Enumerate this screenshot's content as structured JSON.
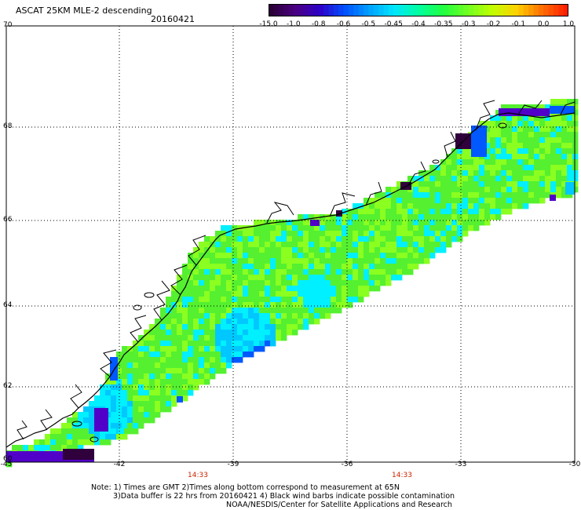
{
  "title": "ASCAT 25KM MLE-2 descending",
  "date": "20160421",
  "colorbar": {
    "labels": [
      "-15.0",
      "-1.0",
      "-0.8",
      "-0.6",
      "-0.5",
      "-0.45",
      "-0.4",
      "-0.35",
      "-0.3",
      "-0.2",
      "-0.1",
      "0.0",
      "1.0"
    ],
    "colors": [
      "#2a0036",
      "#4b0082",
      "#2c00c8",
      "#0050ff",
      "#00a0ff",
      "#00e6ff",
      "#00ffa0",
      "#20ff40",
      "#70ff20",
      "#c0ff00",
      "#ffd000",
      "#ff7000",
      "#ff2000"
    ]
  },
  "map": {
    "lat_labels": [
      "70",
      "68",
      "66",
      "64",
      "62",
      "60"
    ],
    "lon_labels": [
      "-45",
      "-42",
      "-39",
      "-36",
      "-33",
      "-30"
    ],
    "time_labels": [
      {
        "text": "14:33"
      },
      {
        "text": "14:33"
      }
    ],
    "swath_colors": {
      "green": "#55f030",
      "lime": "#8aff20",
      "cyan": "#00f0ff",
      "sky": "#00c8ff",
      "blue": "#0058ff",
      "purple": "#5000c8",
      "dark": "#30003c"
    }
  },
  "notes": [
    "Note: 1) Times are GMT 2)Times along bottom correspond to measurement at 65N",
    "3)Data buffer is 22 hrs from 20160421 4) Black wind barbs indicate possible contamination",
    "NOAA/NESDIS/Center for Satellite Applications and Research"
  ]
}
